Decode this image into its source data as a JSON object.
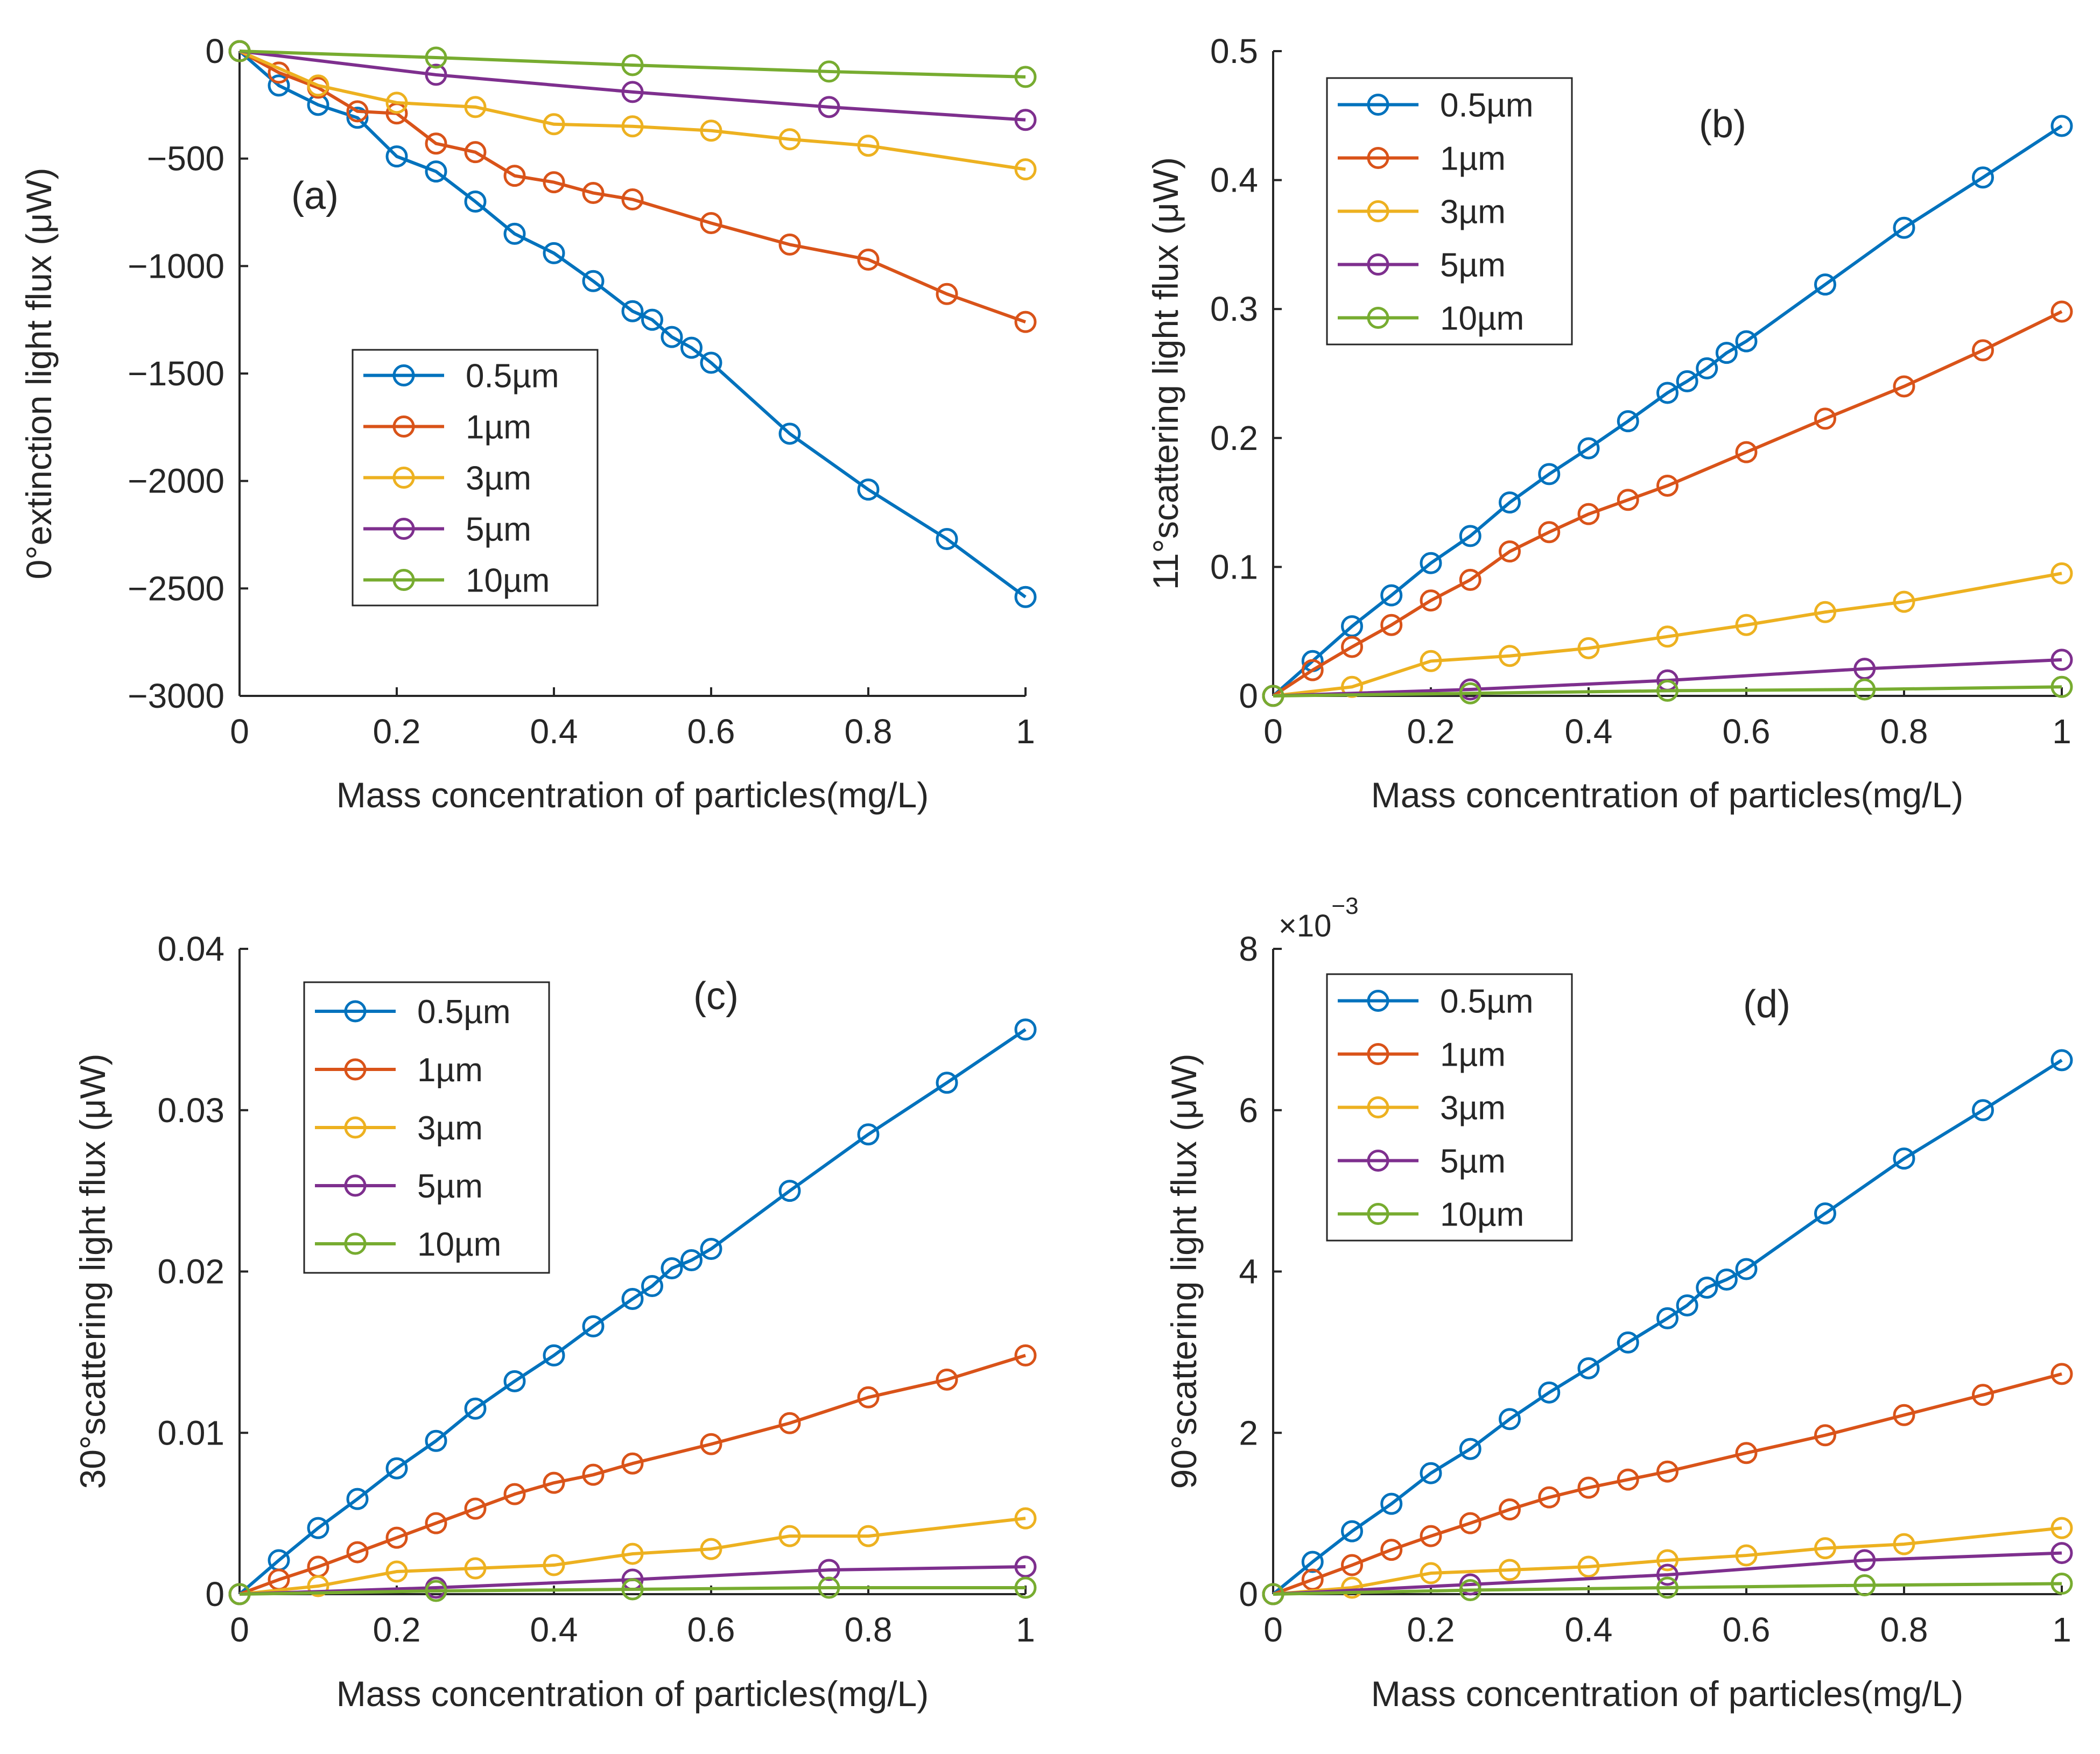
{
  "figure": {
    "title": ""
  },
  "series_styles": {
    "0.5µm": "#0072BD",
    "1µm": "#D95319",
    "3µm": "#EDB120",
    "5µm": "#7E2F8E",
    "10µm": "#77AC30"
  },
  "chart_data": [
    {
      "type": "line",
      "panel_label": "(a)",
      "title": "",
      "xlabel": "Mass concentration of particles(mg/L)",
      "ylabel": "0°extinction light flux (μW)",
      "xlim": [
        0,
        1
      ],
      "ylim": [
        -3000,
        0
      ],
      "xticks": [
        0,
        0.2,
        0.4,
        0.6,
        0.8,
        1
      ],
      "xtick_labels": [
        "0",
        "0.2",
        "0.4",
        "0.6",
        "0.8",
        "1"
      ],
      "yticks": [
        0,
        -500,
        -1000,
        -1500,
        -2000,
        -2500,
        -3000
      ],
      "ytick_labels": [
        "0",
        "−500",
        "−1000",
        "−1500",
        "−2000",
        "−2500",
        "−3000"
      ],
      "exponent_label": "",
      "grid": false,
      "legend_position": "lower-left-center",
      "series": [
        {
          "name": "0.5µm",
          "x": [
            0,
            0.05,
            0.1,
            0.15,
            0.2,
            0.25,
            0.3,
            0.35,
            0.4,
            0.45,
            0.5,
            0.525,
            0.55,
            0.575,
            0.6,
            0.7,
            0.8,
            0.9,
            1
          ],
          "y": [
            0,
            -160,
            -250,
            -310,
            -490,
            -560,
            -700,
            -850,
            -940,
            -1070,
            -1210,
            -1250,
            -1330,
            -1380,
            -1450,
            -1780,
            -2040,
            -2270,
            -2540
          ]
        },
        {
          "name": "1µm",
          "x": [
            0,
            0.05,
            0.1,
            0.15,
            0.2,
            0.25,
            0.3,
            0.35,
            0.4,
            0.45,
            0.5,
            0.6,
            0.7,
            0.8,
            0.9,
            1
          ],
          "y": [
            0,
            -100,
            -170,
            -280,
            -290,
            -430,
            -470,
            -580,
            -610,
            -660,
            -690,
            -800,
            -900,
            -970,
            -1130,
            -1260
          ]
        },
        {
          "name": "3µm",
          "x": [
            0,
            0.1,
            0.2,
            0.3,
            0.4,
            0.5,
            0.6,
            0.7,
            0.8,
            1
          ],
          "y": [
            0,
            -160,
            -240,
            -260,
            -340,
            -350,
            -370,
            -410,
            -440,
            -550
          ]
        },
        {
          "name": "5µm",
          "x": [
            0,
            0.25,
            0.5,
            0.75,
            1
          ],
          "y": [
            0,
            -110,
            -190,
            -260,
            -320
          ]
        },
        {
          "name": "10µm",
          "x": [
            0,
            0.25,
            0.5,
            0.75,
            1
          ],
          "y": [
            0,
            -30,
            -65,
            -95,
            -120
          ]
        }
      ]
    },
    {
      "type": "line",
      "panel_label": "(b)",
      "title": "",
      "xlabel": "Mass concentration of particles(mg/L)",
      "ylabel": "11°scattering light flux (μW)",
      "xlim": [
        0,
        1
      ],
      "ylim": [
        0,
        0.5
      ],
      "xticks": [
        0,
        0.2,
        0.4,
        0.6,
        0.8,
        1
      ],
      "xtick_labels": [
        "0",
        "0.2",
        "0.4",
        "0.6",
        "0.8",
        "1"
      ],
      "yticks": [
        0,
        0.1,
        0.2,
        0.3,
        0.4,
        0.5
      ],
      "ytick_labels": [
        "0",
        "0.1",
        "0.2",
        "0.3",
        "0.4",
        "0.5"
      ],
      "exponent_label": "",
      "grid": false,
      "legend_position": "top-left",
      "series": [
        {
          "name": "0.5µm",
          "x": [
            0,
            0.05,
            0.1,
            0.15,
            0.2,
            0.25,
            0.3,
            0.35,
            0.4,
            0.45,
            0.5,
            0.525,
            0.55,
            0.575,
            0.6,
            0.7,
            0.8,
            0.9,
            1
          ],
          "y": [
            0,
            0.027,
            0.054,
            0.078,
            0.103,
            0.124,
            0.15,
            0.172,
            0.192,
            0.213,
            0.235,
            0.244,
            0.254,
            0.266,
            0.275,
            0.319,
            0.363,
            0.402,
            0.442
          ]
        },
        {
          "name": "1µm",
          "x": [
            0,
            0.05,
            0.1,
            0.15,
            0.2,
            0.25,
            0.3,
            0.35,
            0.4,
            0.45,
            0.5,
            0.6,
            0.7,
            0.8,
            0.9,
            1
          ],
          "y": [
            0,
            0.02,
            0.038,
            0.055,
            0.074,
            0.09,
            0.112,
            0.127,
            0.141,
            0.152,
            0.163,
            0.189,
            0.215,
            0.24,
            0.268,
            0.298
          ]
        },
        {
          "name": "3µm",
          "x": [
            0,
            0.1,
            0.2,
            0.3,
            0.4,
            0.5,
            0.6,
            0.7,
            0.8,
            1
          ],
          "y": [
            0,
            0.007,
            0.027,
            0.031,
            0.037,
            0.046,
            0.055,
            0.065,
            0.073,
            0.095
          ]
        },
        {
          "name": "5µm",
          "x": [
            0,
            0.25,
            0.5,
            0.75,
            1
          ],
          "y": [
            0,
            0.005,
            0.012,
            0.021,
            0.028
          ]
        },
        {
          "name": "10µm",
          "x": [
            0,
            0.25,
            0.5,
            0.75,
            1
          ],
          "y": [
            0,
            0.002,
            0.004,
            0.005,
            0.007
          ]
        }
      ]
    },
    {
      "type": "line",
      "panel_label": "(c)",
      "title": "",
      "xlabel": "Mass concentration of particles(mg/L)",
      "ylabel": "30°scattering light flux (μW)",
      "xlim": [
        0,
        1
      ],
      "ylim": [
        0,
        0.04
      ],
      "xticks": [
        0,
        0.2,
        0.4,
        0.6,
        0.8,
        1
      ],
      "xtick_labels": [
        "0",
        "0.2",
        "0.4",
        "0.6",
        "0.8",
        "1"
      ],
      "yticks": [
        0,
        0.01,
        0.02,
        0.03,
        0.04
      ],
      "ytick_labels": [
        "0",
        "0.01",
        "0.02",
        "0.03",
        "0.04"
      ],
      "exponent_label": "",
      "grid": false,
      "legend_position": "top-left",
      "series": [
        {
          "name": "0.5µm",
          "x": [
            0,
            0.05,
            0.1,
            0.15,
            0.2,
            0.25,
            0.3,
            0.35,
            0.4,
            0.45,
            0.5,
            0.525,
            0.55,
            0.575,
            0.6,
            0.7,
            0.8,
            0.9,
            1
          ],
          "y": [
            0,
            0.0021,
            0.0041,
            0.0059,
            0.0078,
            0.0095,
            0.0115,
            0.0132,
            0.0148,
            0.0166,
            0.0183,
            0.0191,
            0.0202,
            0.0207,
            0.0214,
            0.025,
            0.0285,
            0.0317,
            0.035
          ]
        },
        {
          "name": "1µm",
          "x": [
            0,
            0.05,
            0.1,
            0.15,
            0.2,
            0.25,
            0.3,
            0.35,
            0.4,
            0.45,
            0.5,
            0.6,
            0.7,
            0.8,
            0.9,
            1
          ],
          "y": [
            0,
            0.0009,
            0.0017,
            0.0026,
            0.0035,
            0.0044,
            0.0053,
            0.0062,
            0.0069,
            0.0074,
            0.0081,
            0.0093,
            0.0106,
            0.0122,
            0.0133,
            0.0148
          ]
        },
        {
          "name": "3µm",
          "x": [
            0,
            0.1,
            0.2,
            0.3,
            0.4,
            0.5,
            0.6,
            0.7,
            0.8,
            1
          ],
          "y": [
            0,
            0.0005,
            0.0014,
            0.0016,
            0.0018,
            0.0025,
            0.0028,
            0.0036,
            0.0036,
            0.0047
          ]
        },
        {
          "name": "5µm",
          "x": [
            0,
            0.25,
            0.5,
            0.75,
            1
          ],
          "y": [
            0,
            0.0004,
            0.0009,
            0.0015,
            0.0017
          ]
        },
        {
          "name": "10µm",
          "x": [
            0,
            0.25,
            0.5,
            0.75,
            1
          ],
          "y": [
            0,
            0.0002,
            0.0003,
            0.0004,
            0.0004
          ]
        }
      ]
    },
    {
      "type": "line",
      "panel_label": "(d)",
      "title": "",
      "xlabel": "Mass concentration of particles(mg/L)",
      "ylabel": "90°scattering light flux (μW)",
      "xlim": [
        0,
        1
      ],
      "ylim": [
        0,
        8
      ],
      "xticks": [
        0,
        0.2,
        0.4,
        0.6,
        0.8,
        1
      ],
      "xtick_labels": [
        "0",
        "0.2",
        "0.4",
        "0.6",
        "0.8",
        "1"
      ],
      "yticks": [
        0,
        2,
        4,
        6,
        8
      ],
      "ytick_labels": [
        "0",
        "2",
        "4",
        "6",
        "8"
      ],
      "exponent_label": "×10",
      "exponent_power": "−3",
      "grid": false,
      "legend_position": "top-left",
      "series": [
        {
          "name": "0.5µm",
          "x": [
            0,
            0.05,
            0.1,
            0.15,
            0.2,
            0.25,
            0.3,
            0.35,
            0.4,
            0.45,
            0.5,
            0.525,
            0.55,
            0.575,
            0.6,
            0.7,
            0.8,
            0.9,
            1
          ],
          "y": [
            0,
            0.4,
            0.78,
            1.12,
            1.5,
            1.8,
            2.17,
            2.5,
            2.8,
            3.12,
            3.42,
            3.58,
            3.8,
            3.9,
            4.03,
            4.72,
            5.4,
            6.0,
            6.62
          ]
        },
        {
          "name": "1µm",
          "x": [
            0,
            0.05,
            0.1,
            0.15,
            0.2,
            0.25,
            0.3,
            0.35,
            0.4,
            0.45,
            0.5,
            0.6,
            0.7,
            0.8,
            0.9,
            1
          ],
          "y": [
            0,
            0.18,
            0.36,
            0.55,
            0.72,
            0.88,
            1.05,
            1.2,
            1.32,
            1.42,
            1.52,
            1.75,
            1.97,
            2.22,
            2.47,
            2.73
          ]
        },
        {
          "name": "3µm",
          "x": [
            0,
            0.1,
            0.2,
            0.3,
            0.4,
            0.5,
            0.6,
            0.7,
            0.8,
            1
          ],
          "y": [
            0,
            0.08,
            0.26,
            0.3,
            0.34,
            0.42,
            0.48,
            0.57,
            0.62,
            0.82
          ]
        },
        {
          "name": "5µm",
          "x": [
            0,
            0.25,
            0.5,
            0.75,
            1
          ],
          "y": [
            0,
            0.12,
            0.24,
            0.42,
            0.51
          ]
        },
        {
          "name": "10µm",
          "x": [
            0,
            0.25,
            0.5,
            0.75,
            1
          ],
          "y": [
            0,
            0.05,
            0.08,
            0.11,
            0.13
          ]
        }
      ]
    }
  ]
}
